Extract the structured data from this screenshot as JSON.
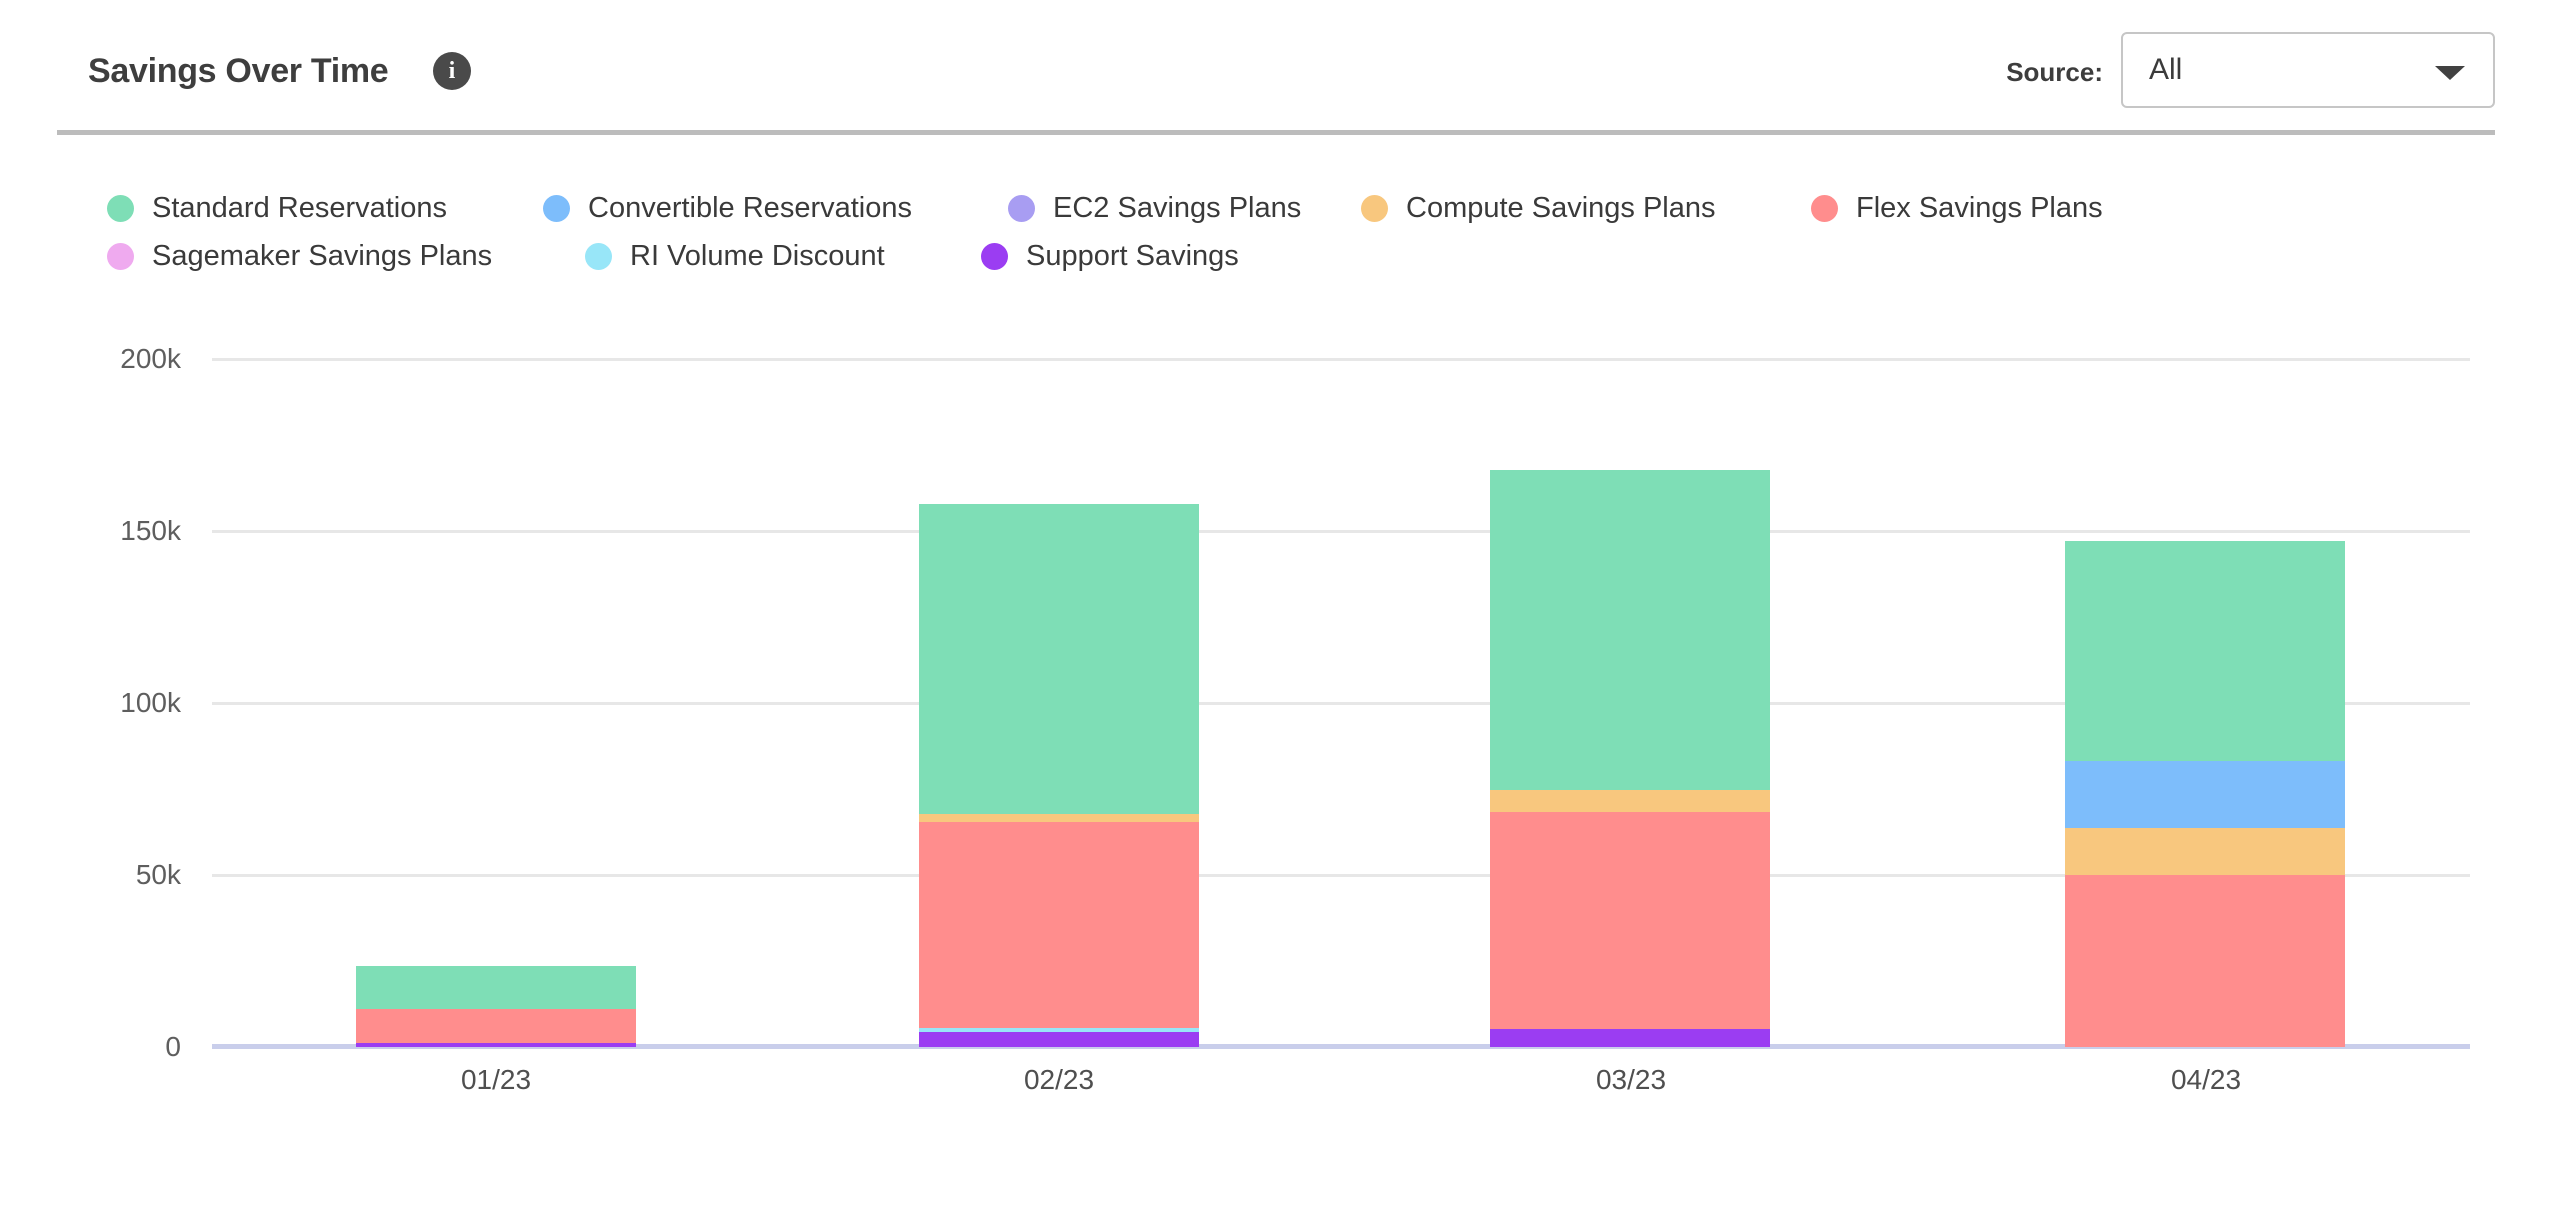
{
  "header": {
    "title": "Savings Over Time",
    "info_icon": "i",
    "source_label": "Source:",
    "source_value": "All"
  },
  "colors": {
    "accent_baseline": "#c9ceeb",
    "gridline": "#e7e7e7",
    "divider": "#bcbcbc",
    "info_icon_bg": "#4a4a4a"
  },
  "chart_data": {
    "type": "bar",
    "subtype": "stacked-vertical",
    "title": "Savings Over Time",
    "xlabel": "",
    "ylabel": "",
    "ylim": [
      0,
      200000
    ],
    "grid": true,
    "legend_position": "top",
    "categories": [
      "01/23",
      "02/23",
      "03/23",
      "04/23"
    ],
    "y_ticks": [
      {
        "label": "0",
        "value": 0
      },
      {
        "label": "50k",
        "value": 50000
      },
      {
        "label": "100k",
        "value": 100000
      },
      {
        "label": "150k",
        "value": 150000
      },
      {
        "label": "200k",
        "value": 200000
      }
    ],
    "stack_order": "last-series-at-bottom",
    "series": [
      {
        "name": "Standard Reservations",
        "color": "#7edeb6",
        "values": [
          12500,
          90000,
          93000,
          64000
        ]
      },
      {
        "name": "Convertible Reservations",
        "color": "#7dbdfb",
        "values": [
          0,
          0,
          0,
          19500
        ]
      },
      {
        "name": "EC2 Savings Plans",
        "color": "#a89df2",
        "values": [
          0,
          0,
          0,
          0
        ]
      },
      {
        "name": "Compute Savings Plans",
        "color": "#f8c77e",
        "values": [
          0,
          2300,
          6400,
          13700
        ]
      },
      {
        "name": "Flex Savings Plans",
        "color": "#ff8d8d",
        "values": [
          10000,
          60000,
          63000,
          50000
        ]
      },
      {
        "name": "Sagemaker Savings Plans",
        "color": "#efaaef",
        "values": [
          0,
          0,
          0,
          0
        ]
      },
      {
        "name": "RI Volume Discount",
        "color": "#98e6f8",
        "values": [
          0,
          1200,
          0,
          0
        ]
      },
      {
        "name": "Support Savings",
        "color": "#9b3df2",
        "values": [
          1200,
          4400,
          5200,
          0
        ]
      }
    ],
    "totals": [
      23700,
      157900,
      167600,
      147200
    ]
  }
}
